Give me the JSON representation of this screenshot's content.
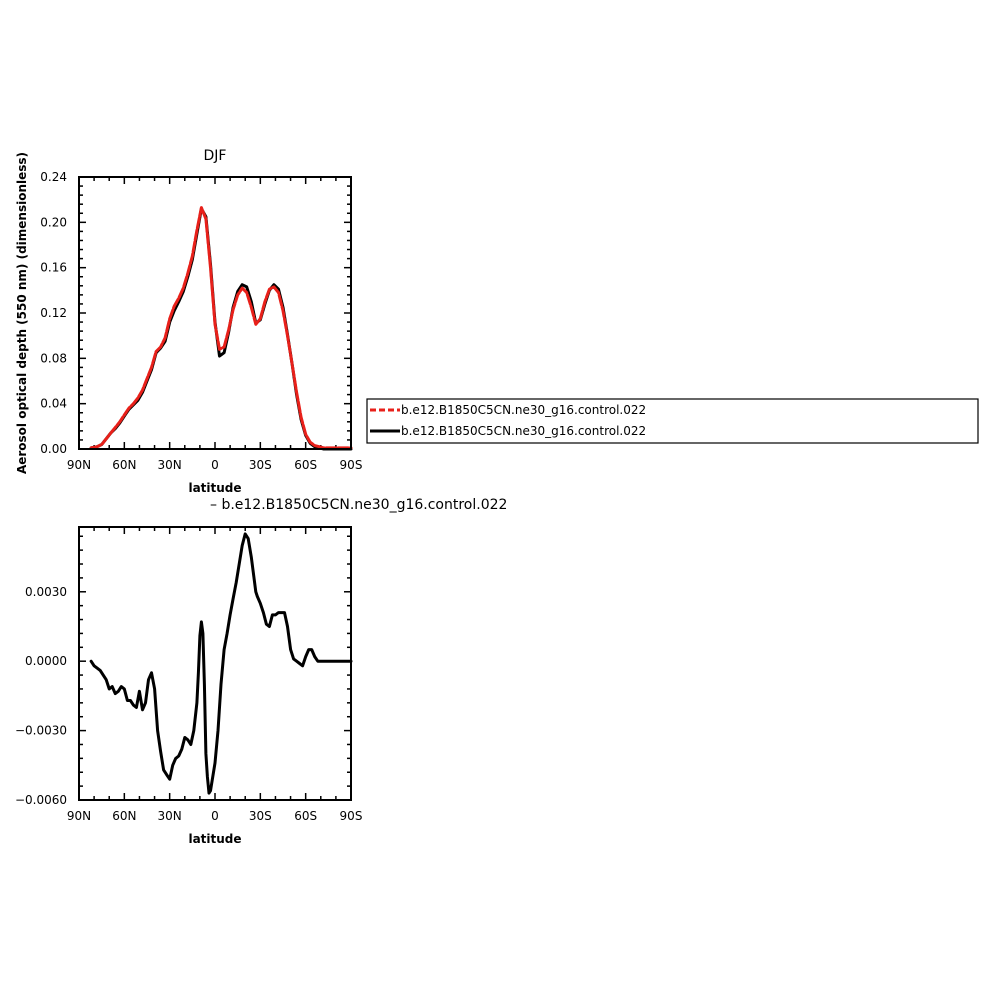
{
  "chart_data": [
    {
      "type": "line",
      "title": "DJF",
      "xlabel": "latitude",
      "ylabel": "Aerosol optical depth (550 nm) (dimensionless)",
      "xlim": [
        90,
        -90
      ],
      "ylim": [
        0,
        0.24
      ],
      "x_ticks": [
        90,
        60,
        30,
        0,
        -30,
        -60,
        -90
      ],
      "x_tick_labels": [
        "90N",
        "60N",
        "30N",
        "0",
        "30S",
        "60S",
        "90S"
      ],
      "y_ticks": [
        0,
        0.04,
        0.08,
        0.12,
        0.16,
        0.2,
        0.24
      ],
      "y_tick_labels": [
        "0.00",
        "0.04",
        "0.08",
        "0.12",
        "0.16",
        "0.20",
        "0.24"
      ],
      "grid": false,
      "legend_position": "right",
      "series": [
        {
          "name": "b.e12.B1850C5CN.ne30_g16.control.022",
          "color": "#e8201a",
          "style": "dashed",
          "x": [
            82,
            78,
            75,
            72,
            69,
            66,
            63,
            60,
            57,
            54,
            51,
            48,
            45,
            42,
            39,
            36,
            33,
            30,
            27,
            24,
            21,
            18,
            15,
            12,
            9,
            6,
            3,
            0,
            -3,
            -6,
            -9,
            -12,
            -15,
            -18,
            -21,
            -24,
            -27,
            -30,
            -33,
            -36,
            -39,
            -42,
            -45,
            -48,
            -51,
            -54,
            -57,
            -60,
            -63,
            -66,
            -69,
            -72,
            -75,
            -78,
            -82,
            -86,
            -90
          ],
          "y": [
            0.001,
            0.002,
            0.004,
            0.009,
            0.014,
            0.019,
            0.024,
            0.03,
            0.036,
            0.04,
            0.045,
            0.052,
            0.062,
            0.072,
            0.086,
            0.09,
            0.098,
            0.115,
            0.126,
            0.133,
            0.142,
            0.155,
            0.17,
            0.193,
            0.213,
            0.203,
            0.16,
            0.11,
            0.088,
            0.09,
            0.105,
            0.123,
            0.136,
            0.142,
            0.138,
            0.125,
            0.11,
            0.115,
            0.13,
            0.141,
            0.143,
            0.138,
            0.122,
            0.1,
            0.075,
            0.05,
            0.028,
            0.013,
            0.006,
            0.003,
            0.002,
            0.001,
            0.001,
            0.001,
            0.001,
            0.001,
            0.001
          ]
        },
        {
          "name": "b.e12.B1850C5CN.ne30_g16.control.022",
          "color": "#000000",
          "style": "solid",
          "x": [
            82,
            78,
            75,
            72,
            69,
            66,
            63,
            60,
            57,
            54,
            51,
            48,
            45,
            42,
            39,
            36,
            33,
            30,
            27,
            24,
            21,
            18,
            15,
            12,
            9,
            6,
            3,
            0,
            -3,
            -6,
            -9,
            -12,
            -15,
            -18,
            -21,
            -24,
            -27,
            -30,
            -33,
            -36,
            -39,
            -42,
            -45,
            -48,
            -51,
            -54,
            -57,
            -60,
            -63,
            -66,
            -69,
            -72,
            -75,
            -78,
            -82,
            -86,
            -90
          ],
          "y": [
            0.001,
            0.002,
            0.004,
            0.009,
            0.014,
            0.018,
            0.023,
            0.029,
            0.035,
            0.039,
            0.043,
            0.05,
            0.06,
            0.07,
            0.085,
            0.089,
            0.095,
            0.112,
            0.122,
            0.13,
            0.139,
            0.152,
            0.167,
            0.19,
            0.212,
            0.205,
            0.163,
            0.112,
            0.082,
            0.085,
            0.103,
            0.125,
            0.139,
            0.145,
            0.143,
            0.13,
            0.111,
            0.114,
            0.128,
            0.14,
            0.145,
            0.141,
            0.125,
            0.101,
            0.075,
            0.048,
            0.026,
            0.012,
            0.005,
            0.002,
            0.001,
            0.0,
            0.0,
            0.0,
            0.0,
            0.0,
            0.0
          ]
        }
      ]
    },
    {
      "type": "line",
      "title": "– b.e12.B1850C5CN.ne30_g16.control.022",
      "xlabel": "latitude",
      "ylabel": "",
      "xlim": [
        90,
        -90
      ],
      "ylim": [
        -0.006,
        0.0058
      ],
      "x_ticks": [
        90,
        60,
        30,
        0,
        -30,
        -60,
        -90
      ],
      "x_tick_labels": [
        "90N",
        "60N",
        "30N",
        "0",
        "30S",
        "60S",
        "90S"
      ],
      "y_ticks": [
        -0.006,
        -0.003,
        0,
        0.003
      ],
      "y_tick_labels": [
        "−0.0060",
        "−0.0030",
        "0.0000",
        "0.0030"
      ],
      "grid": false,
      "series": [
        {
          "color": "#000000",
          "style": "solid",
          "x": [
            82,
            80,
            78,
            76,
            74,
            72,
            70,
            68,
            66,
            64,
            62,
            60,
            58,
            56,
            54,
            52,
            50,
            48,
            46,
            44,
            42,
            40,
            38,
            36,
            34,
            32,
            30,
            28,
            26,
            24,
            22,
            20,
            18,
            16,
            14,
            12,
            11,
            10,
            9,
            8,
            7,
            6,
            5,
            4,
            3,
            2,
            1,
            0,
            -2,
            -4,
            -6,
            -8,
            -10,
            -12,
            -14,
            -16,
            -18,
            -20,
            -22,
            -24,
            -26,
            -27,
            -28,
            -30,
            -32,
            -34,
            -36,
            -38,
            -40,
            -42,
            -44,
            -46,
            -48,
            -50,
            -52,
            -54,
            -56,
            -58,
            -60,
            -62,
            -64,
            -66,
            -68,
            -70,
            -72,
            -74,
            -76,
            -78,
            -80,
            -82,
            -84,
            -86,
            -88,
            -90
          ],
          "y": [
            0.0,
            -0.0002,
            -0.0003,
            -0.0004,
            -0.0006,
            -0.0008,
            -0.0012,
            -0.0011,
            -0.0014,
            -0.0013,
            -0.0011,
            -0.0012,
            -0.0017,
            -0.0017,
            -0.0019,
            -0.002,
            -0.0013,
            -0.0021,
            -0.0018,
            -0.0008,
            -0.0005,
            -0.0012,
            -0.003,
            -0.0039,
            -0.0047,
            -0.0049,
            -0.0051,
            -0.0045,
            -0.0042,
            -0.0041,
            -0.0038,
            -0.0033,
            -0.0034,
            -0.0036,
            -0.003,
            -0.0018,
            -0.0005,
            0.0011,
            0.0017,
            0.0012,
            -0.001,
            -0.004,
            -0.005,
            -0.0057,
            -0.0056,
            -0.0052,
            -0.0048,
            -0.0044,
            -0.003,
            -0.001,
            0.0005,
            0.0012,
            0.002,
            0.0027,
            0.0034,
            0.0042,
            0.005,
            0.0055,
            0.0053,
            0.0045,
            0.0035,
            0.003,
            0.0028,
            0.0025,
            0.0021,
            0.0016,
            0.0015,
            0.002,
            0.002,
            0.0021,
            0.0021,
            0.0021,
            0.0015,
            0.0005,
            0.0001,
            0.0,
            -0.0001,
            -0.0002,
            0.0002,
            0.0005,
            0.0005,
            0.0002,
            0.0,
            0.0,
            0.0,
            0.0,
            0.0,
            0.0,
            0.0,
            0.0,
            0.0,
            0.0,
            0.0,
            0.0
          ]
        }
      ]
    }
  ]
}
